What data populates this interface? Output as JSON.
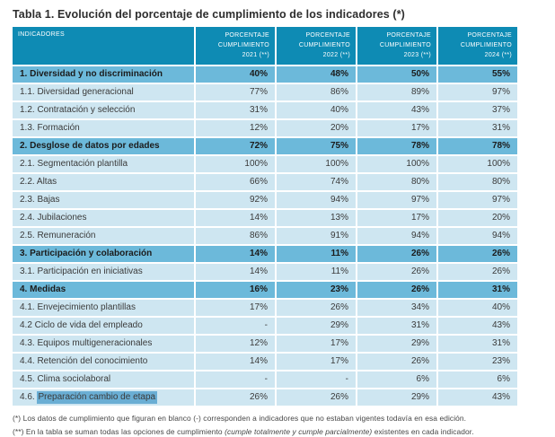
{
  "page_title": "Tabla 1. Evolución del porcentaje de cumplimiento de los indicadores (*)",
  "colors": {
    "header_bg": "#0e8bb4",
    "section_bg": "#6cb9da",
    "row_bg": "#cee6f1",
    "highlight_bg": "#6aaed4",
    "header_text": "#ffffff"
  },
  "table": {
    "columns": [
      {
        "label": "INDICADORES"
      },
      {
        "lines": [
          "PORCENTAJE",
          "CUMPLIMIENTO",
          "2021 (**)"
        ]
      },
      {
        "lines": [
          "PORCENTAJE",
          "CUMPLIMIENTO",
          "2022 (**)"
        ]
      },
      {
        "lines": [
          "PORCENTAJE",
          "CUMPLIMIENTO",
          "2023 (**)"
        ]
      },
      {
        "lines": [
          "PORCENTAJE",
          "CUMPLIMIENTO",
          "2024 (**)"
        ]
      }
    ],
    "rows": [
      {
        "type": "section",
        "label": "1. Diversidad y no discriminación",
        "values": [
          "40%",
          "48%",
          "50%",
          "55%"
        ]
      },
      {
        "type": "item",
        "label": "1.1. Diversidad generacional",
        "values": [
          "77%",
          "86%",
          "89%",
          "97%"
        ]
      },
      {
        "type": "item",
        "label": "1.2. Contratación y selección",
        "values": [
          "31%",
          "40%",
          "43%",
          "37%"
        ]
      },
      {
        "type": "item",
        "label": "1.3. Formación",
        "values": [
          "12%",
          "20%",
          "17%",
          "31%"
        ]
      },
      {
        "type": "section",
        "label": "2. Desglose de datos por edades",
        "values": [
          "72%",
          "75%",
          "78%",
          "78%"
        ]
      },
      {
        "type": "item",
        "label": "2.1. Segmentación plantilla",
        "values": [
          "100%",
          "100%",
          "100%",
          "100%"
        ]
      },
      {
        "type": "item",
        "label": "2.2. Altas",
        "values": [
          "66%",
          "74%",
          "80%",
          "80%"
        ]
      },
      {
        "type": "item",
        "label": "2.3. Bajas",
        "values": [
          "92%",
          "94%",
          "97%",
          "97%"
        ]
      },
      {
        "type": "item",
        "label": "2.4. Jubilaciones",
        "values": [
          "14%",
          "13%",
          "17%",
          "20%"
        ]
      },
      {
        "type": "item",
        "label": "2.5. Remuneración",
        "values": [
          "86%",
          "91%",
          "94%",
          "94%"
        ]
      },
      {
        "type": "section",
        "label": "3. Participación y colaboración",
        "values": [
          "14%",
          "11%",
          "26%",
          "26%"
        ]
      },
      {
        "type": "item",
        "label": "3.1. Participación en iniciativas",
        "values": [
          "14%",
          "11%",
          "26%",
          "26%"
        ]
      },
      {
        "type": "section",
        "label": "4. Medidas",
        "values": [
          "16%",
          "23%",
          "26%",
          "31%"
        ]
      },
      {
        "type": "item",
        "label": "4.1. Envejecimiento plantillas",
        "values": [
          "17%",
          "26%",
          "34%",
          "40%"
        ]
      },
      {
        "type": "item",
        "label": "4.2 Ciclo de vida del empleado",
        "values": [
          "-",
          "29%",
          "31%",
          "43%"
        ]
      },
      {
        "type": "item",
        "label": "4.3. Equipos multigeneracionales",
        "values": [
          "12%",
          "17%",
          "29%",
          "31%"
        ]
      },
      {
        "type": "item",
        "label": "4.4. Retención del conocimiento",
        "values": [
          "14%",
          "17%",
          "26%",
          "23%"
        ]
      },
      {
        "type": "item",
        "label": "4.5. Clima sociolaboral",
        "values": [
          "-",
          "-",
          "6%",
          "6%"
        ]
      },
      {
        "type": "item",
        "label": "4.6. ",
        "highlight": "Preparación cambio de etapa",
        "values": [
          "26%",
          "26%",
          "29%",
          "43%"
        ]
      }
    ]
  },
  "footnotes": [
    {
      "text": "(*) Los datos de cumplimiento que figuran en blanco (-) corresponden a indicadores que no estaban vigentes todavía en esa edición."
    },
    {
      "prefix": "(**) En la tabla se suman todas las opciones de cumplimiento ",
      "italic": "(cumple totalmente y cumple parcialmente)",
      "suffix": " existentes en cada indicador."
    }
  ]
}
